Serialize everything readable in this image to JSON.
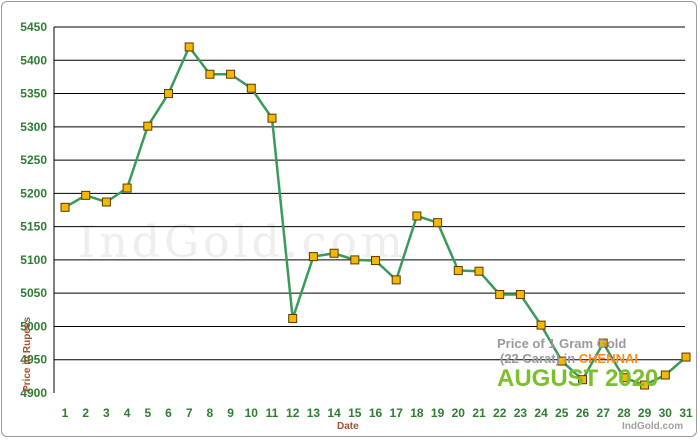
{
  "chart_data": {
    "type": "line",
    "title": "",
    "xlabel": "Date",
    "ylabel": "Price in Rupees",
    "categories": [
      "1",
      "2",
      "3",
      "4",
      "5",
      "6",
      "7",
      "8",
      "9",
      "10",
      "11",
      "12",
      "13",
      "14",
      "15",
      "16",
      "17",
      "18",
      "19",
      "20",
      "21",
      "22",
      "23",
      "24",
      "25",
      "26",
      "27",
      "28",
      "29",
      "30",
      "31"
    ],
    "series": [
      {
        "values": [
          5179,
          5197,
          5187,
          5208,
          5301,
          5350,
          5420,
          5379,
          5379,
          5358,
          5313,
          5012,
          5105,
          5110,
          5100,
          5099,
          5070,
          5166,
          5156,
          5084,
          5083,
          5048,
          5048,
          5002,
          4948,
          4920,
          4975,
          4923,
          4912,
          4927,
          4954
        ]
      }
    ],
    "ylim": [
      4900,
      5450
    ],
    "yticks": [
      "4900",
      "4950",
      "5000",
      "5050",
      "5100",
      "5150",
      "5200",
      "5250",
      "5300",
      "5350",
      "5400",
      "5450"
    ],
    "grid": true,
    "colors": {
      "line": "#3a9a5a",
      "marker_fill": "#f5b800",
      "marker_stroke": "#5a3a00",
      "tick_text": "#2e7d32",
      "grid": "#000000"
    }
  },
  "watermark": "IndGold.com",
  "badge": {
    "line1": "Price of 1 Gram Gold",
    "line2_prefix": "(22 Carat) in ",
    "city": "CHENNAI",
    "month": "AUGUST",
    "year": "2020"
  },
  "footer_brand": "IndGold.com"
}
